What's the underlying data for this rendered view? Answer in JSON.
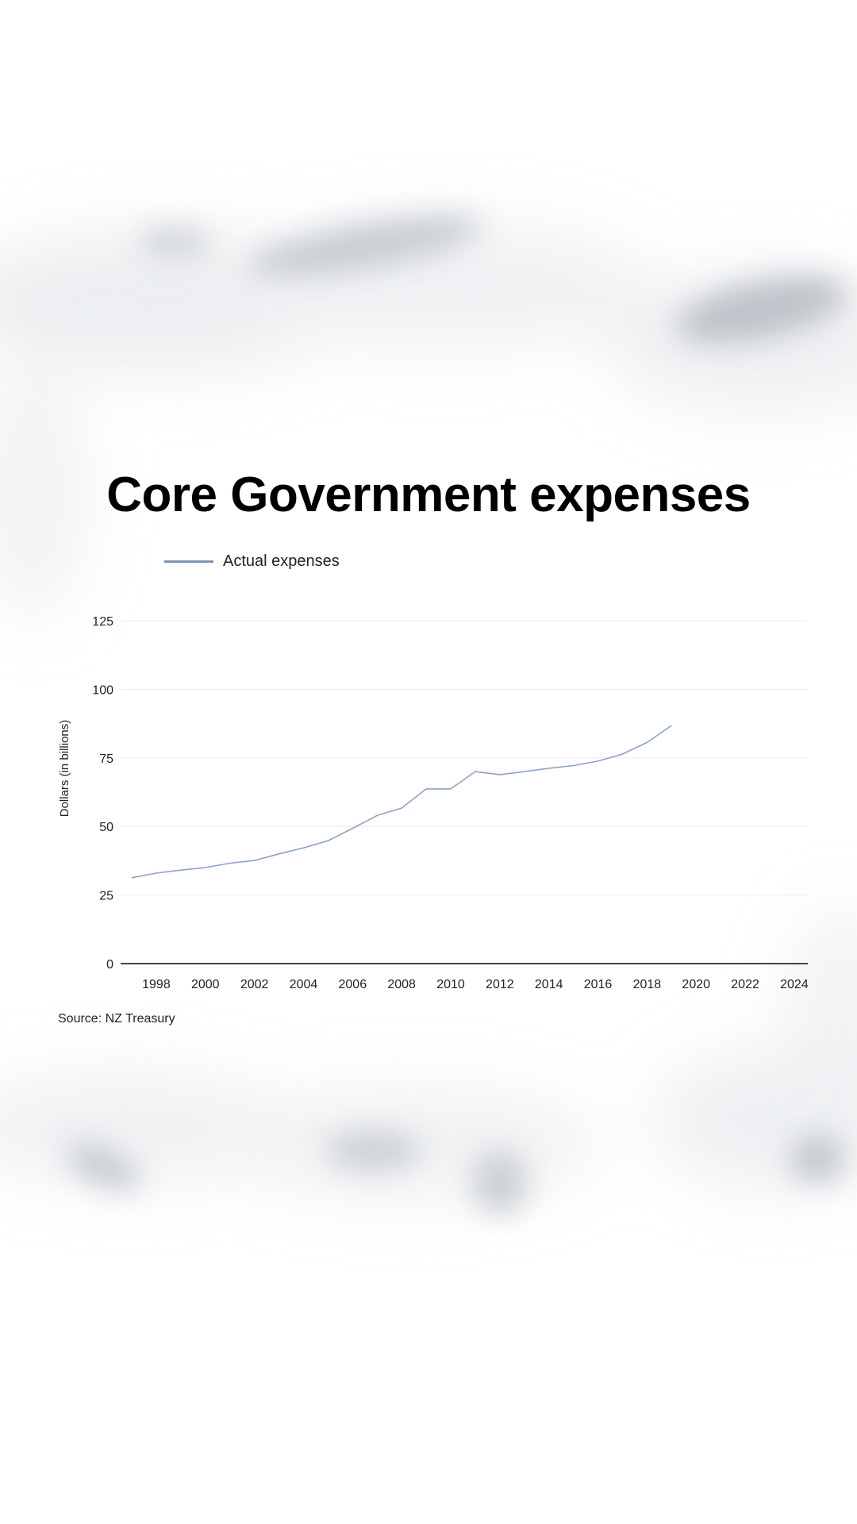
{
  "page": {
    "title": "Core Government expenses",
    "source": "Source: NZ Treasury"
  },
  "chart_data": {
    "type": "line",
    "title": "Core Government expenses",
    "xlabel": "",
    "ylabel": "Dollars (in billions)",
    "ylim": [
      0,
      125
    ],
    "xlim": [
      1997,
      2024
    ],
    "yticks": [
      0,
      25,
      50,
      75,
      100,
      125
    ],
    "xticks": [
      1998,
      2000,
      2002,
      2004,
      2006,
      2008,
      2010,
      2012,
      2014,
      2016,
      2018,
      2020,
      2022,
      2024
    ],
    "grid": true,
    "legend": "top-left",
    "series": [
      {
        "name": "Actual expenses",
        "color": "#8da2c6",
        "x": [
          1997,
          1998,
          1999,
          2000,
          2001,
          2002,
          2003,
          2004,
          2005,
          2006,
          2007,
          2008,
          2009,
          2010,
          2011,
          2012,
          2013,
          2014,
          2015,
          2016,
          2017,
          2018,
          2019
        ],
        "values": [
          31.3,
          33.0,
          34.1,
          35.0,
          36.6,
          37.6,
          40.0,
          42.2,
          44.8,
          49.3,
          54.0,
          56.7,
          63.7,
          63.7,
          70.0,
          68.9,
          70.0,
          71.2,
          72.2,
          73.8,
          76.4,
          80.6,
          86.8
        ]
      }
    ],
    "source": "Source: NZ Treasury"
  }
}
